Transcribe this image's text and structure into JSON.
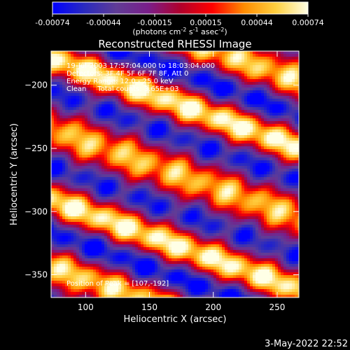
{
  "chart_data": {
    "type": "heatmap",
    "title": "Reconstructed RHESSI Image",
    "xlabel": "Heliocentric X (arcsec)",
    "ylabel": "Heliocentric Y (arcsec)",
    "xlim": [
      73,
      267
    ],
    "ylim": [
      -368,
      -173
    ],
    "xticks": [
      100,
      150,
      200,
      250
    ],
    "yticks": [
      -200,
      -250,
      -300,
      -350
    ],
    "colorbar": {
      "ticks": [
        "-0.00074",
        "-0.00044",
        "-0.00015",
        "0.00015",
        "0.00044",
        "0.00074"
      ],
      "unit_prefix": "(photons cm",
      "unit_sup1": "-2",
      "unit_mid": " s",
      "unit_sup2": "-1",
      "unit_mid2": " asec",
      "unit_sup3": "-2",
      "unit_suffix": ")",
      "range": [
        -0.00074,
        0.00074
      ],
      "colors": [
        "#0000ff",
        "#2a2abf",
        "#603c96",
        "#7a1e8a",
        "#b0002c",
        "#ff0000",
        "#ff8c00",
        "#ffd040",
        "#ffffe6"
      ]
    },
    "annotations": [
      "19-Jul-2003 17:57:04.000 to 18:03:04.000",
      "Detectors: 3F 4F 5F 6F 7F 8F, Att 0",
      "Energy Range: 12.0 - 25.0 keV",
      "Clean     Total counts: 3.65E+03"
    ],
    "peak_label": "Position of Peak = [107,-192]",
    "peak_position": [
      107,
      -192
    ],
    "band_orientation_deg": -20,
    "band_period_arcsec": 52,
    "background": "#000000"
  },
  "footer": {
    "date": "3-May-2022 22:52"
  }
}
